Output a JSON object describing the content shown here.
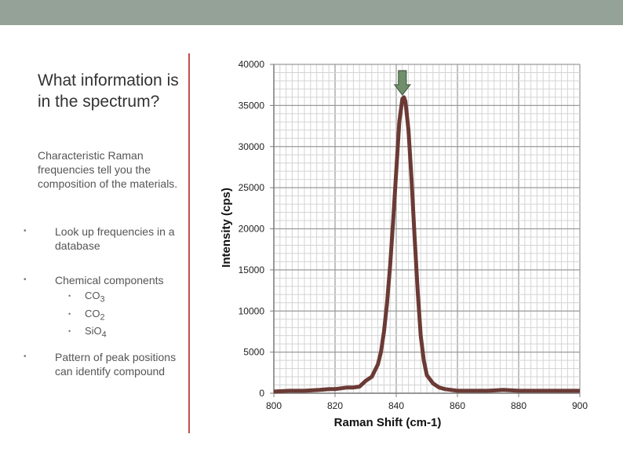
{
  "slide": {
    "title": "What information is in the spectrum?",
    "intro": "Characteristic Raman frequencies tell you the composition of the materials.",
    "bullets": {
      "lookup": "Look up frequencies in a database",
      "chemical": "Chemical components",
      "pattern": "Pattern of peak positions can identify compound"
    },
    "compounds": [
      {
        "base": "CO",
        "sub": "3"
      },
      {
        "base": "CO",
        "sub": "2"
      },
      {
        "base": "SiO",
        "sub": "4"
      }
    ],
    "bullet_glyph": "•",
    "colors": {
      "topbar": "#95a297",
      "divider": "#c0504d",
      "line": "#6b3a35",
      "arrow": "#6e8f6a"
    },
    "icons": {
      "peak_marker": "down-arrow-icon"
    }
  },
  "chart_data": {
    "type": "line",
    "xlabel": "Raman Shift (cm-1)",
    "ylabel": "Intensity (cps)",
    "xlim": [
      800,
      900
    ],
    "ylim": [
      0,
      40000
    ],
    "xticks": [
      800,
      820,
      840,
      860,
      880,
      900
    ],
    "yticks": [
      0,
      5000,
      10000,
      15000,
      20000,
      25000,
      30000,
      35000,
      40000
    ],
    "grid": true,
    "peak_marker_x": 842,
    "series": [
      {
        "x": [
          800,
          805,
          810,
          815,
          818,
          820,
          822,
          824,
          826,
          828,
          830,
          832,
          834,
          835,
          836,
          837,
          838,
          839,
          840,
          841,
          842,
          842.5,
          843,
          844,
          845,
          846,
          847,
          848,
          849,
          850,
          852,
          854,
          856,
          858,
          860,
          865,
          870,
          875,
          880,
          885,
          890,
          895,
          900
        ],
        "values": [
          200,
          300,
          300,
          400,
          500,
          500,
          600,
          700,
          700,
          800,
          1500,
          2000,
          3500,
          5000,
          7500,
          11000,
          15500,
          21000,
          27000,
          33000,
          35800,
          36000,
          35500,
          32000,
          26000,
          19000,
          12500,
          7000,
          4000,
          2200,
          1200,
          700,
          500,
          400,
          300,
          300,
          300,
          400,
          300,
          300,
          300,
          300,
          300
        ]
      }
    ]
  }
}
